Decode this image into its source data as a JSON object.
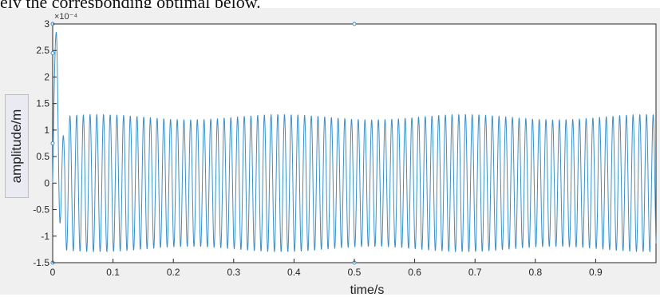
{
  "header": {
    "caption_fragment": "ely the corresponding optimal below."
  },
  "chart_data": {
    "type": "line",
    "title": "",
    "xlabel": "time/s",
    "ylabel": "amplitude/m",
    "y_exponent_label": "×10⁻⁴",
    "xlim": [
      0,
      1
    ],
    "ylim": [
      -1.5,
      3
    ],
    "x_ticks": [
      "0",
      "0.1",
      "0.2",
      "0.3",
      "0.4",
      "0.5",
      "0.6",
      "0.7",
      "0.8",
      "0.9"
    ],
    "y_ticks": [
      "3",
      "2.5",
      "2",
      "1.5",
      "1",
      "0.5",
      "0",
      "-0.5",
      "-1",
      "-1.5"
    ],
    "grid": false,
    "line_color": "#3b8fc7",
    "series": [
      {
        "signal": {
          "form": "sinusoid",
          "frequency_hz": 90,
          "steady_amplitude": 1.25,
          "initial_peak": {
            "x": 0.006,
            "y": 2.85
          },
          "initial_trough": {
            "x": 0.012,
            "y": -0.7
          },
          "sample_step": 0.0005
        }
      }
    ],
    "annotations": [
      {
        "x": 0,
        "y": 3
      },
      {
        "x": 0,
        "y": 2.45
      },
      {
        "x": 0,
        "y": 0.75
      },
      {
        "x": 0,
        "y": -1.5
      },
      {
        "x": 0.5,
        "y": 3
      },
      {
        "x": 0.5,
        "y": -1.5
      }
    ]
  }
}
